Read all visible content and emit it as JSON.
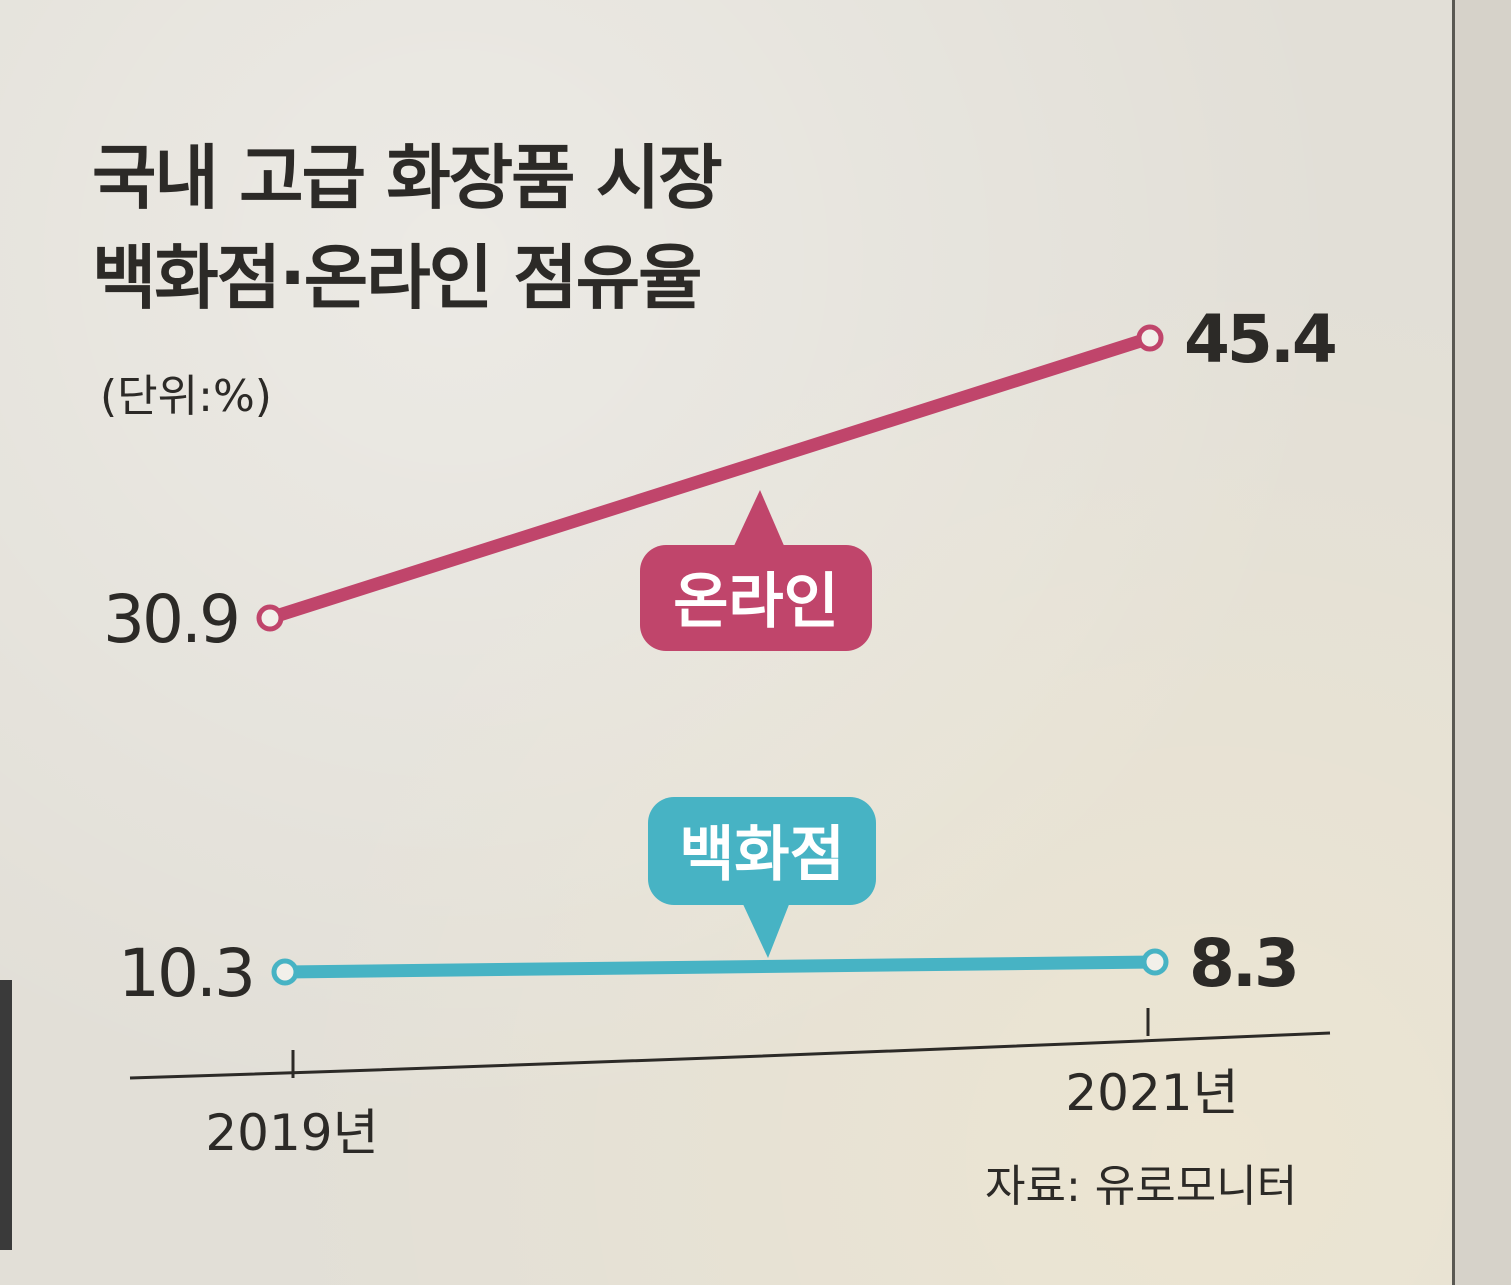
{
  "chart_data": {
    "type": "line",
    "title_line1": "국내 고급 화장품 시장",
    "title_line2": "백화점·온라인 점유율",
    "unit": "(단위:%)",
    "x": [
      "2019년",
      "2021년"
    ],
    "series": [
      {
        "name": "온라인",
        "values": [
          30.9,
          45.4
        ],
        "value_labels": [
          "30.9",
          "45.4"
        ],
        "color": "#c0456b"
      },
      {
        "name": "백화점",
        "values": [
          10.3,
          8.3
        ],
        "value_labels": [
          "10.3",
          "8.3"
        ],
        "color": "#47b3c4"
      }
    ],
    "source": "자료: 유로모니터",
    "grid": false,
    "legend": "callout labels on lines"
  }
}
